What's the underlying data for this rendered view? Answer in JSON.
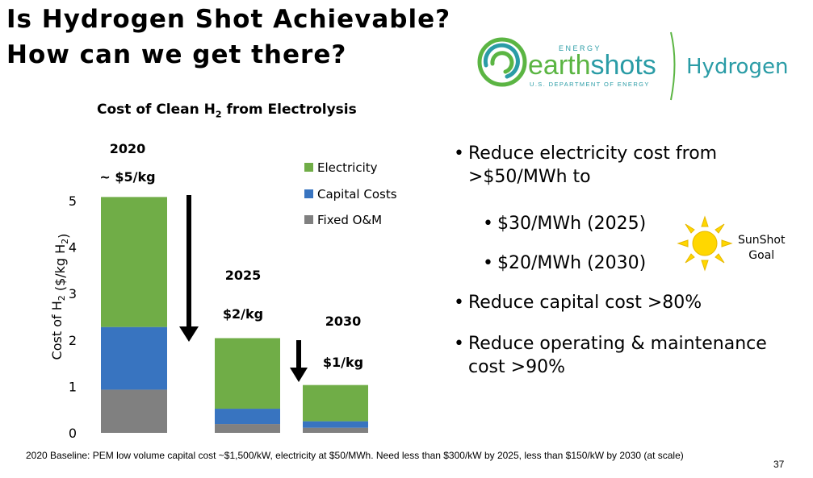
{
  "slide": {
    "title_line1": "Is Hydrogen Shot Achievable?",
    "title_line2": "How can we get there?",
    "page_number": "37",
    "footnote": "2020 Baseline:  PEM low volume capital cost ~$1,500/kW, electricity at $50/MWh. Need less than $300/kW by 2025, less than $150/kW by 2030 (at scale)"
  },
  "logo": {
    "energy": "ENERGY",
    "earth": "earth",
    "shots": "shots",
    "department": "U.S. DEPARTMENT OF ENERGY",
    "hydrogen": "Hydrogen",
    "green": "#5bb543",
    "teal": "#2a9ca6"
  },
  "bullets": {
    "b1": "Reduce electricity cost from >$50/MWh to",
    "s1": "$30/MWh (2025)",
    "s2": "$20/MWh (2030)",
    "b3": "Reduce capital cost >80%",
    "b4": "Reduce operating & maintenance cost >90%",
    "sunshot_label": "SunShot\nGoal"
  },
  "chart_data": {
    "type": "bar",
    "stacked": true,
    "title": "Cost of Clean H2 from Electrolysis",
    "ylabel": "Cost of H2 ($/kg H2)",
    "ylim": [
      0,
      5
    ],
    "yticks": [
      0,
      1,
      2,
      3,
      4,
      5
    ],
    "categories": [
      "2020",
      "2025",
      "2030"
    ],
    "bar_labels": [
      "~ $5/kg",
      "$2/kg",
      "$1/kg"
    ],
    "series": [
      {
        "name": "Fixed O&M",
        "color": "#808080",
        "values": [
          0.93,
          0.19,
          0.11
        ]
      },
      {
        "name": "Capital Costs",
        "color": "#3874c0",
        "values": [
          1.35,
          0.33,
          0.14
        ]
      },
      {
        "name": "Electricity",
        "color": "#70ad47",
        "values": [
          2.8,
          1.52,
          0.78
        ]
      }
    ],
    "legend_position": "top-right",
    "grid": false
  }
}
